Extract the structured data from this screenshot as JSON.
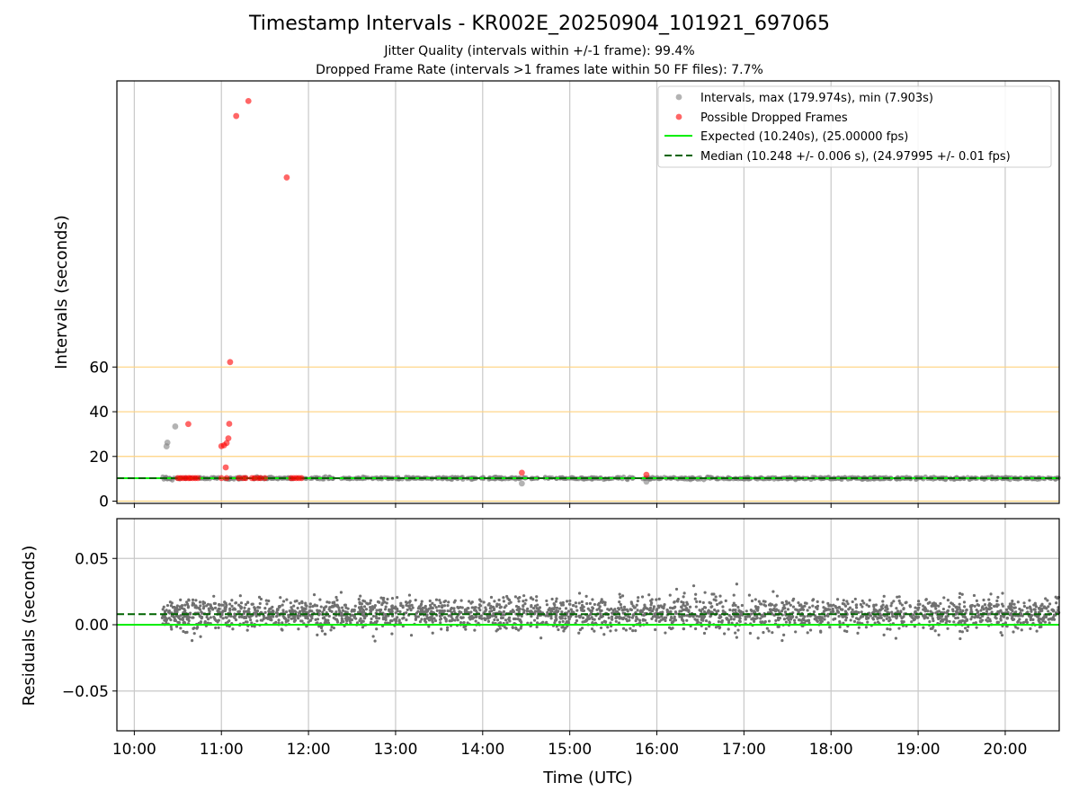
{
  "header": {
    "title": "Timestamp Intervals - KR002E_20250904_101921_697065",
    "subtitle1": "Jitter Quality (intervals within +/-1 frame): 99.4%",
    "subtitle2": "Dropped Frame Rate (intervals >1 frames late within 50 FF files): 7.7%"
  },
  "chart_data": [
    {
      "type": "scatter",
      "ylabel": "Intervals (seconds)",
      "x_units": "hours UTC",
      "xlim": [
        9.8,
        20.62
      ],
      "ylim": [
        -1,
        188
      ],
      "yticks": [
        0,
        20,
        40,
        60
      ],
      "x_ticks": [
        "10:00",
        "11:00",
        "12:00",
        "13:00",
        "14:00",
        "15:00",
        "16:00",
        "17:00",
        "18:00",
        "19:00",
        "20:00"
      ],
      "reference_lines_y": [
        0,
        20,
        40,
        60
      ],
      "reference_line_color": "#ffd27f",
      "grid": "vertical",
      "legend_position": "top-right",
      "legend": [
        "Intervals, max (179.974s), min (7.903s)",
        "Possible Dropped Frames",
        "Expected (10.240s), (25.00000 fps)",
        "Median (10.248 +/- 0.006 s), (24.97995 +/- 0.01 fps)"
      ],
      "series": [
        {
          "name": "Intervals, max (179.974s), min (7.903s)",
          "kind": "scatter",
          "color": "#808080",
          "baseline": 10.24,
          "x_range": [
            10.32,
            20.62
          ],
          "points": [
            [
              10.37,
              24.5
            ],
            [
              10.38,
              26.2
            ],
            [
              10.47,
              33.4
            ],
            [
              14.45,
              7.9
            ],
            [
              15.88,
              8.7
            ]
          ]
        },
        {
          "name": "Possible Dropped Frames",
          "kind": "scatter",
          "color": "#ff0000",
          "points": [
            [
              10.5,
              10.3
            ],
            [
              10.53,
              10.3
            ],
            [
              10.56,
              10.3
            ],
            [
              10.59,
              10.3
            ],
            [
              10.62,
              10.3
            ],
            [
              10.64,
              10.3
            ],
            [
              10.67,
              10.3
            ],
            [
              10.7,
              10.3
            ],
            [
              10.73,
              10.3
            ],
            [
              10.62,
              34.5
            ],
            [
              11.0,
              24.6
            ],
            [
              11.03,
              25.0
            ],
            [
              11.05,
              15.1
            ],
            [
              11.06,
              26.0
            ],
            [
              11.08,
              28.1
            ],
            [
              11.09,
              34.6
            ],
            [
              11.0,
              10.3
            ],
            [
              11.06,
              10.3
            ],
            [
              11.1,
              62.2
            ],
            [
              11.17,
              172.3
            ],
            [
              11.2,
              10.3
            ],
            [
              11.25,
              10.3
            ],
            [
              11.28,
              10.3
            ],
            [
              11.31,
              179.0
            ],
            [
              11.35,
              10.3
            ],
            [
              11.38,
              10.3
            ],
            [
              11.42,
              10.3
            ],
            [
              11.45,
              10.3
            ],
            [
              11.5,
              10.3
            ],
            [
              11.75,
              144.8
            ],
            [
              11.8,
              10.3
            ],
            [
              11.83,
              10.3
            ],
            [
              11.86,
              10.3
            ],
            [
              11.89,
              10.3
            ],
            [
              11.92,
              10.3
            ],
            [
              14.45,
              12.7
            ],
            [
              15.88,
              11.8
            ]
          ]
        },
        {
          "name": "Expected (10.240s), (25.00000 fps)",
          "kind": "line",
          "color": "#00ee00",
          "y": 10.24
        },
        {
          "name": "Median (10.248 +/- 0.006 s), (24.97995 +/- 0.01 fps)",
          "kind": "dashed-line",
          "color": "#006400",
          "y": 10.248
        }
      ]
    },
    {
      "type": "scatter",
      "ylabel": "Residuals (seconds)",
      "xlabel": "Time (UTC)",
      "x_units": "hours UTC",
      "xlim": [
        9.8,
        20.62
      ],
      "ylim": [
        -0.08,
        0.08
      ],
      "yticks": [
        0.05,
        0.0,
        -0.05
      ],
      "ytick_labels": [
        "0.05",
        "0.00",
        "−0.05"
      ],
      "x_ticks": [
        "10:00",
        "11:00",
        "12:00",
        "13:00",
        "14:00",
        "15:00",
        "16:00",
        "17:00",
        "18:00",
        "19:00",
        "20:00"
      ],
      "grid": "both",
      "series": [
        {
          "kind": "scatter",
          "color": "#707070",
          "x_range": [
            10.32,
            20.62
          ],
          "center": 0.008,
          "spread": 0.006
        },
        {
          "kind": "line",
          "color": "#00ee00",
          "y": 0.0
        },
        {
          "kind": "dashed-line",
          "color": "#006400",
          "y": 0.008
        }
      ]
    }
  ]
}
